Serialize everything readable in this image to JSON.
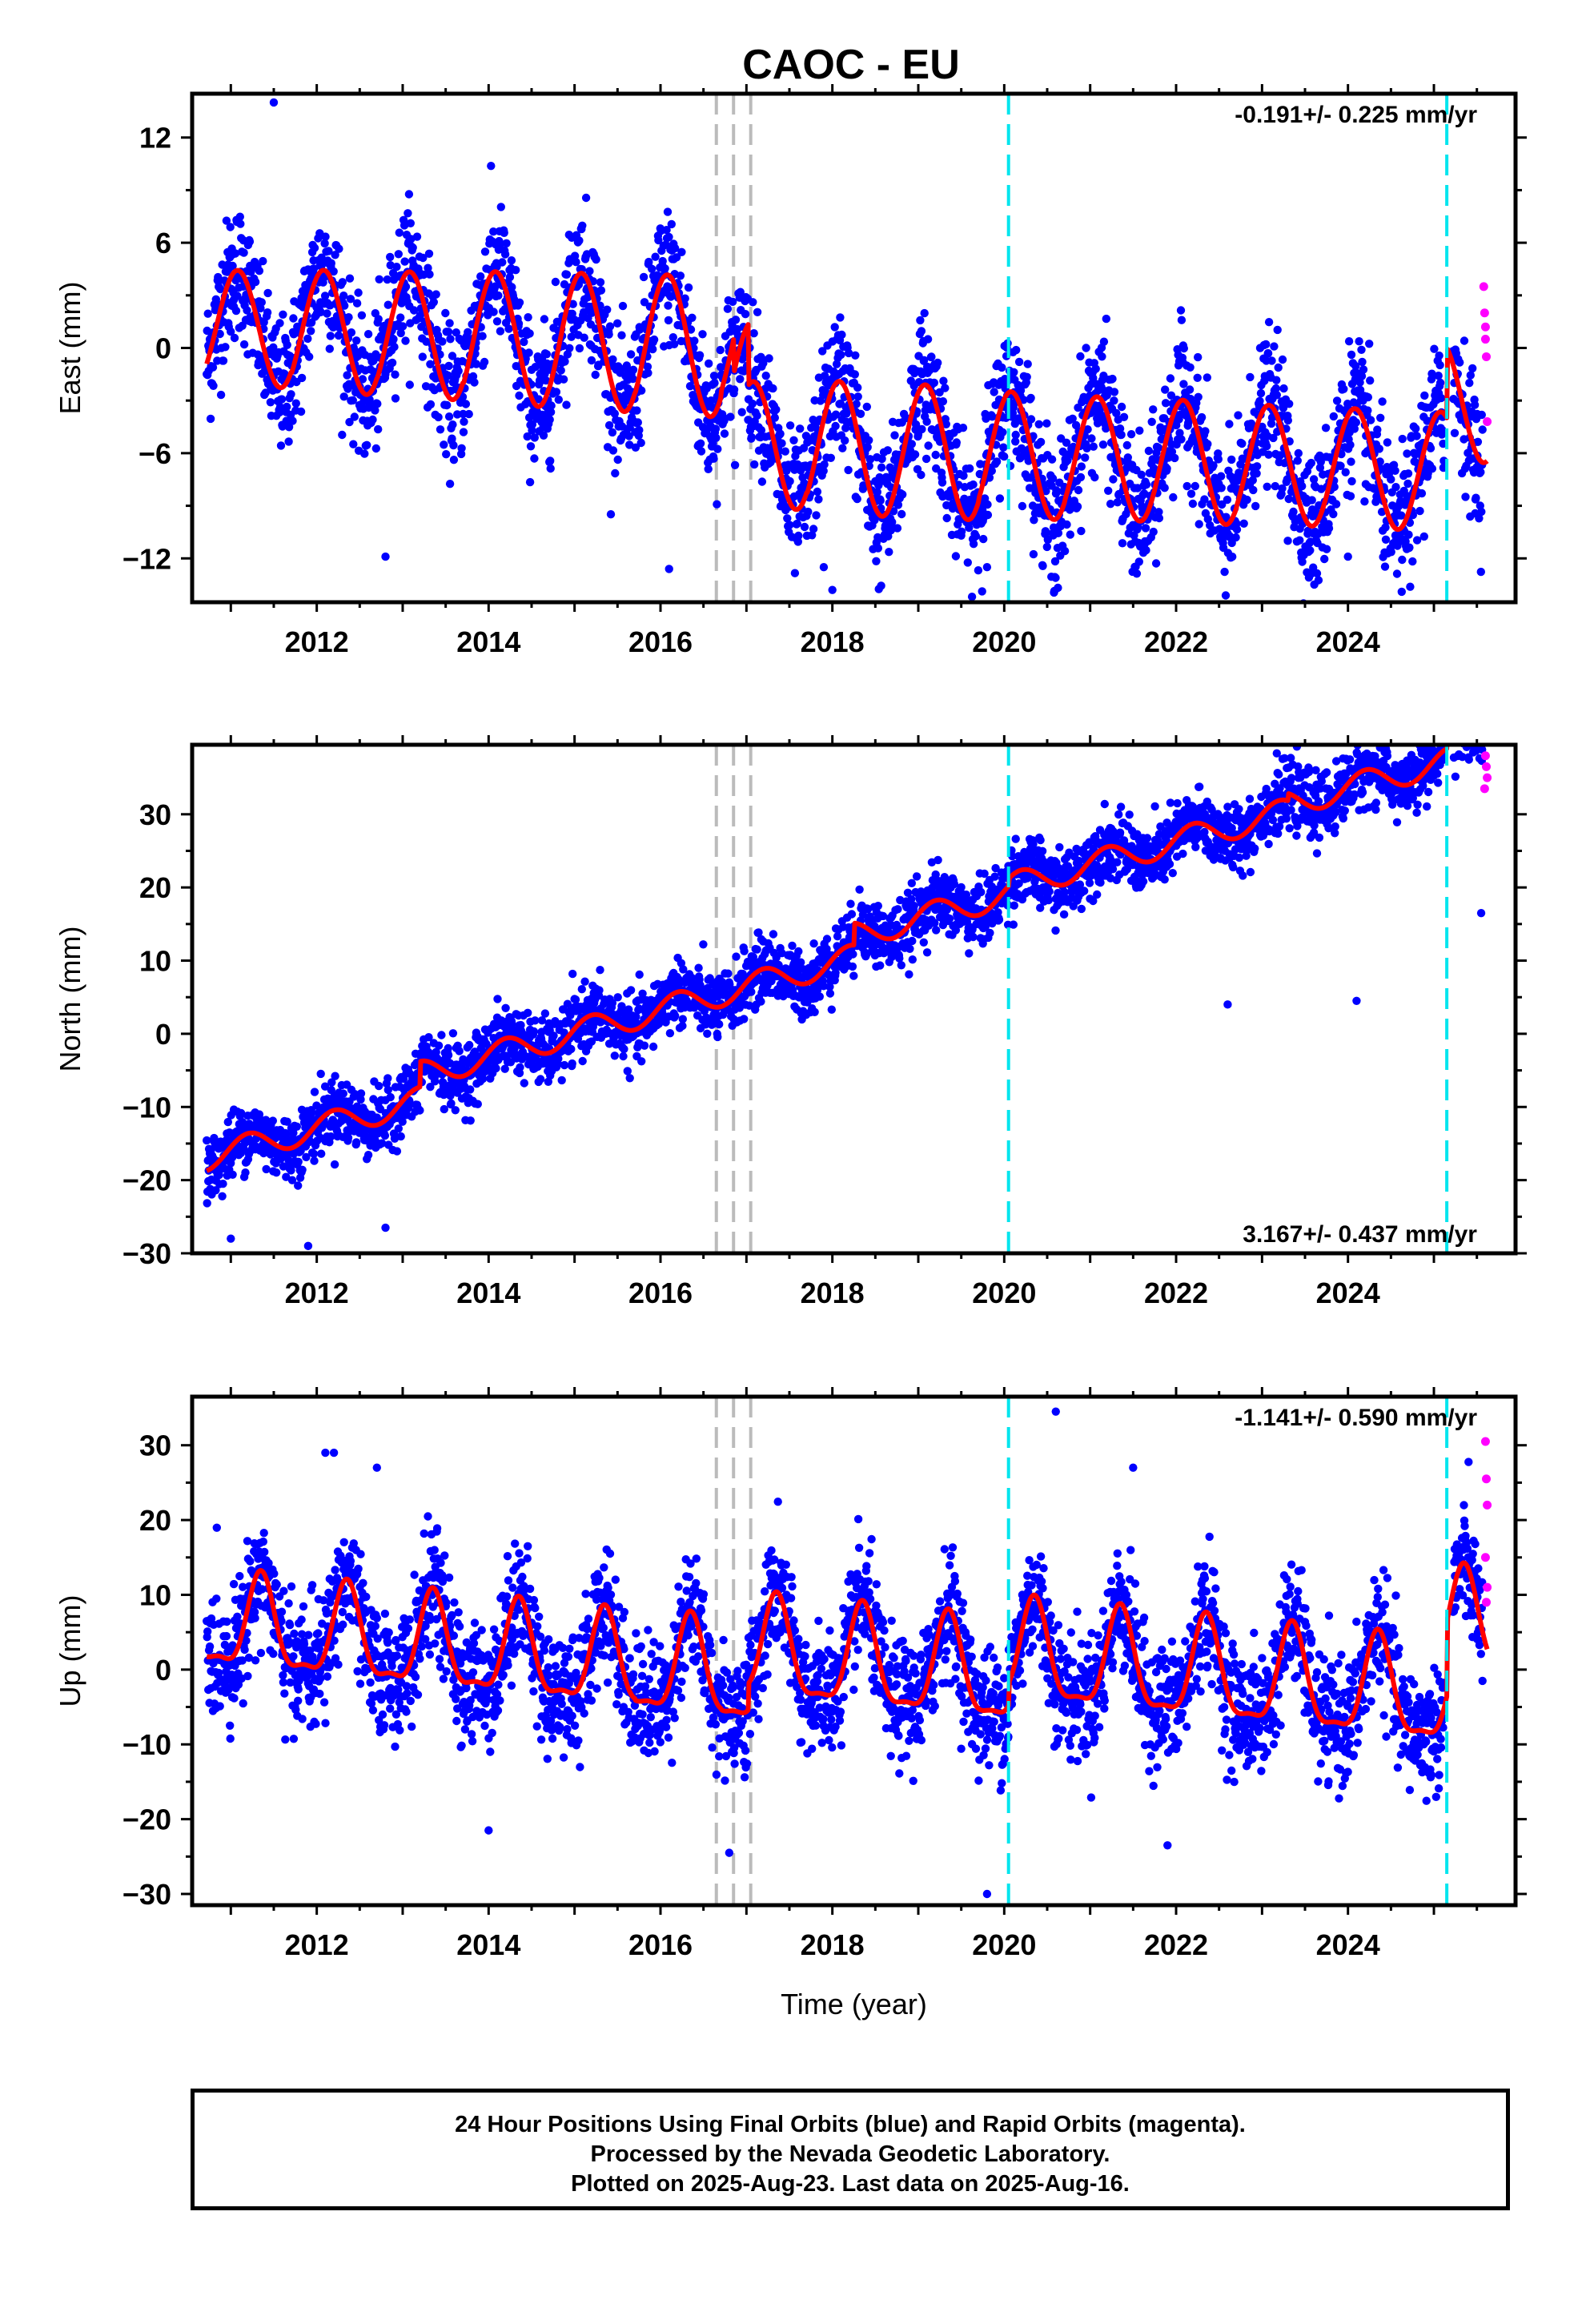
{
  "title": "CAOC - EU",
  "caption": [
    "24 Hour Positions Using Final Orbits (blue) and Rapid Orbits (magenta).",
    "Processed by the Nevada Geodetic Laboratory.",
    "Plotted on 2025-Aug-23. Last data on 2025-Aug-16."
  ],
  "colors": {
    "final": "#0000ff",
    "rapid": "#ff00ff",
    "model": "#ff0000",
    "equipment": "#bbbbbb",
    "event": "#00e5ee"
  },
  "chart_data": [
    {
      "type": "scatter",
      "name": "east",
      "ylabel": "East (mm)",
      "xlabel": "",
      "rate": "-0.191+/- 0.225 mm/yr",
      "xlim": [
        2010.55,
        2025.95
      ],
      "ylim": [
        -14.5,
        14.5
      ],
      "xticks": [
        2012,
        2014,
        2016,
        2018,
        2020,
        2022,
        2024
      ],
      "yticks": [
        12,
        6,
        0,
        -6,
        -12
      ],
      "ytick_labels": [
        "12",
        "6",
        "0",
        "−6",
        "−12"
      ],
      "model": {
        "offset": 1.2,
        "rate": -0.191,
        "amplitudes": [
          3.3,
          3.5,
          3.6,
          3.8,
          3.9,
          4.0,
          3.6,
          3.8,
          3.8,
          3.6,
          3.5,
          3.5,
          3.4,
          3.4,
          3.4,
          3.3
        ],
        "phase": 2011.08,
        "steps": [
          {
            "x": 2016.85,
            "dy": -2.0
          },
          {
            "x": 2017.02,
            "dy": -3.5
          },
          {
            "x": 2025.15,
            "dy": 4.0
          }
        ]
      },
      "scatter_sigma": 1.9,
      "rapid": [
        [
          2025.58,
          3.5
        ],
        [
          2025.59,
          2.0
        ],
        [
          2025.6,
          0.5
        ],
        [
          2025.61,
          -0.5
        ],
        [
          2025.62,
          -4.2
        ],
        [
          2025.6,
          1.2
        ]
      ],
      "outliers": [
        [
          2011.5,
          14.0
        ],
        [
          2016.1,
          -12.6
        ],
        [
          2018.0,
          -13.8
        ],
        [
          2017.9,
          -12.5
        ],
        [
          2019.8,
          -12.5
        ],
        [
          2012.8,
          -11.9
        ],
        [
          2024.0,
          -11.9
        ],
        [
          2023.3,
          -11.0
        ]
      ]
    },
    {
      "type": "scatter",
      "name": "north",
      "ylabel": "North (mm)",
      "xlabel": "",
      "rate": "3.167+/- 0.437 mm/yr",
      "xlim": [
        2010.55,
        2025.95
      ],
      "ylim": [
        -30,
        39.5
      ],
      "xticks": [
        2012,
        2014,
        2016,
        2018,
        2020,
        2022,
        2024
      ],
      "yticks": [
        30,
        20,
        10,
        0,
        -10,
        -20,
        -30
      ],
      "ytick_labels": [
        "30",
        "20",
        "10",
        "0",
        "−10",
        "−20",
        "−30"
      ],
      "model": {
        "offset": -17.0,
        "rate": 3.167,
        "amplitudes": [
          1.8
        ],
        "phase": 2011.2,
        "steps": [
          {
            "x": 2013.2,
            "dy": 3.5
          },
          {
            "x": 2018.25,
            "dy": 3.0
          },
          {
            "x": 2020.05,
            "dy": 1.0
          },
          {
            "x": 2023.3,
            "dy": 1.0
          },
          {
            "x": 2025.15,
            "dy": 2.5
          }
        ]
      },
      "scatter_sigma": 2.2,
      "rapid": [
        [
          2025.6,
          38.0
        ],
        [
          2025.61,
          36.5
        ],
        [
          2025.62,
          35.0
        ],
        [
          2025.59,
          33.5
        ]
      ],
      "outliers": [
        [
          2011.0,
          -28.0
        ],
        [
          2011.9,
          -29.0
        ],
        [
          2012.8,
          -26.5
        ],
        [
          2022.6,
          4.0
        ],
        [
          2024.1,
          4.5
        ],
        [
          2025.55,
          16.5
        ]
      ]
    },
    {
      "type": "scatter",
      "name": "up",
      "ylabel": "Up (mm)",
      "xlabel": "Time (year)",
      "rate": "-1.141+/- 0.590 mm/yr",
      "xlim": [
        2010.55,
        2025.95
      ],
      "ylim": [
        -31.5,
        36.5
      ],
      "xticks": [
        2012,
        2014,
        2016,
        2018,
        2020,
        2022,
        2024
      ],
      "yticks": [
        30,
        20,
        10,
        0,
        -10,
        -20,
        -30
      ],
      "ytick_labels": [
        "30",
        "20",
        "10",
        "0",
        "−10",
        "−20",
        "−30"
      ],
      "model": {
        "offset": 6.0,
        "rate": -1.141,
        "amplitudes": [
          6.0,
          6.0,
          6.0,
          6.0,
          6.0,
          6.3,
          6.5,
          6.5,
          6.5,
          6.5,
          6.5,
          6.5,
          6.5,
          6.5,
          6.5
        ],
        "phase": 2011.35,
        "steps": [
          {
            "x": 2017.02,
            "dy": 3.5
          },
          {
            "x": 2020.05,
            "dy": 3.0
          },
          {
            "x": 2025.15,
            "dy": 10.0
          }
        ]
      },
      "scatter_sigma": 4.0,
      "rapid": [
        [
          2025.6,
          30.5
        ],
        [
          2025.61,
          25.5
        ],
        [
          2025.62,
          22.0
        ],
        [
          2025.6,
          15.0
        ],
        [
          2025.62,
          11.0
        ],
        [
          2025.61,
          9.0
        ]
      ],
      "outliers": [
        [
          2012.1,
          29.0
        ],
        [
          2012.2,
          29.0
        ],
        [
          2012.7,
          27.0
        ],
        [
          2020.6,
          34.5
        ],
        [
          2014.0,
          -21.5
        ],
        [
          2016.8,
          -24.5
        ],
        [
          2019.8,
          -30.0
        ],
        [
          2021.9,
          -23.5
        ],
        [
          2021.5,
          27.0
        ]
      ]
    }
  ],
  "x_tick_labels": [
    "2012",
    "2014",
    "2016",
    "2018",
    "2020",
    "2022",
    "2024"
  ],
  "equipment_changes": [
    2016.65,
    2016.85,
    2017.05
  ],
  "event_lines": [
    2020.05,
    2025.15
  ]
}
